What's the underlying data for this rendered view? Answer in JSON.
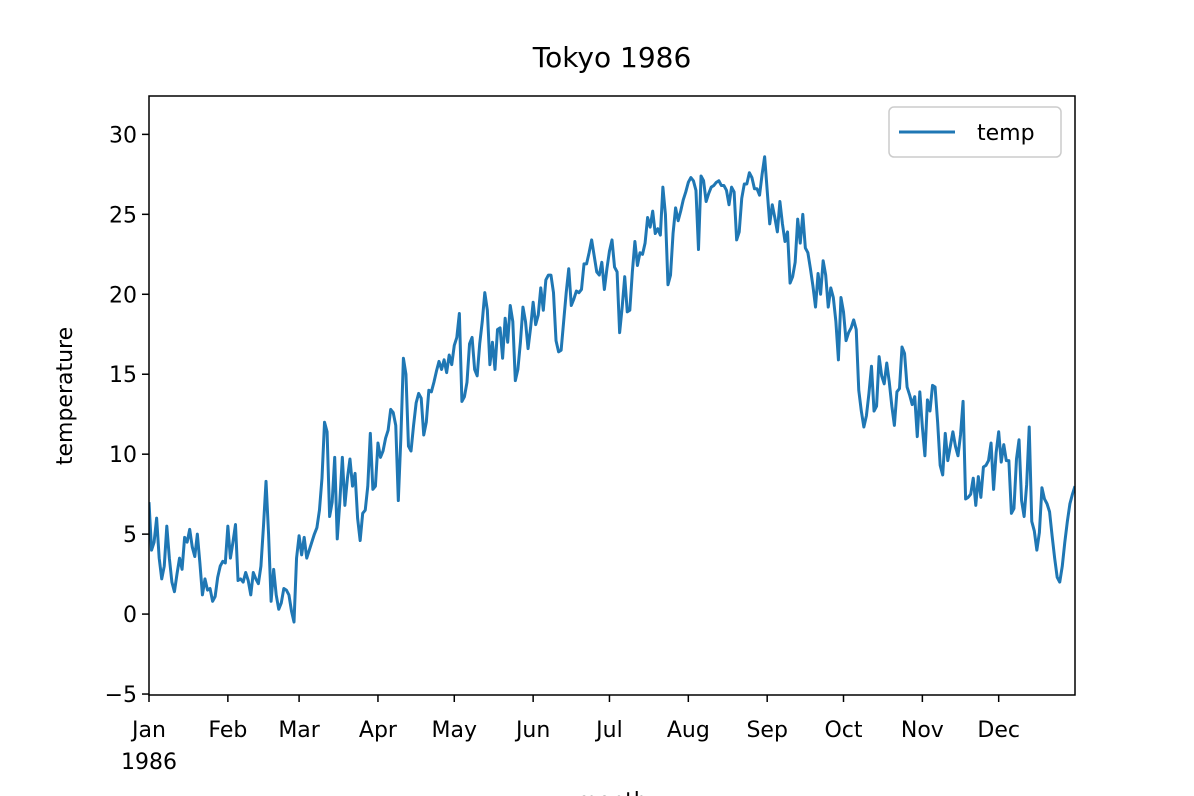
{
  "chart_data": {
    "type": "line",
    "title": "Tokyo 1986",
    "xlabel": "month",
    "ylabel": "temperature",
    "x": [
      0,
      1,
      2,
      3,
      4,
      5,
      6,
      7,
      8,
      9,
      10,
      11,
      12,
      13,
      14,
      15,
      16,
      17,
      18,
      19,
      20,
      21,
      22,
      23,
      24,
      25,
      26,
      27,
      28,
      29,
      30,
      31,
      32,
      33,
      34,
      35,
      36,
      37,
      38,
      39,
      40,
      41,
      42,
      43,
      44,
      45,
      46,
      47,
      48,
      49,
      50,
      51,
      52,
      53,
      54,
      55,
      56,
      57,
      58,
      59,
      60,
      61,
      62,
      63,
      64,
      65,
      66,
      67,
      68,
      69,
      70,
      71,
      72,
      73,
      74,
      75,
      76,
      77,
      78,
      79,
      80,
      81,
      82,
      83,
      84,
      85,
      86,
      87,
      88,
      89,
      90,
      91,
      92,
      93,
      94,
      95,
      96,
      97,
      98,
      99,
      100,
      101,
      102,
      103,
      104,
      105,
      106,
      107,
      108,
      109,
      110,
      111,
      112,
      113,
      114,
      115,
      116,
      117,
      118,
      119,
      120,
      121,
      122,
      123,
      124,
      125,
      126,
      127,
      128,
      129,
      130,
      131,
      132,
      133,
      134,
      135,
      136,
      137,
      138,
      139,
      140,
      141,
      142,
      143,
      144,
      145,
      146,
      147,
      148,
      149,
      150,
      151,
      152,
      153,
      154,
      155,
      156,
      157,
      158,
      159,
      160,
      161,
      162,
      163,
      164,
      165,
      166,
      167,
      168,
      169,
      170,
      171,
      172,
      173,
      174,
      175,
      176,
      177,
      178,
      179,
      180,
      181,
      182,
      183,
      184,
      185,
      186,
      187,
      188,
      189,
      190,
      191,
      192,
      193,
      194,
      195,
      196,
      197,
      198,
      199,
      200,
      201,
      202,
      203,
      204,
      205,
      206,
      207,
      208,
      209,
      210,
      211,
      212,
      213,
      214,
      215,
      216,
      217,
      218,
      219,
      220,
      221,
      222,
      223,
      224,
      225,
      226,
      227,
      228,
      229,
      230,
      231,
      232,
      233,
      234,
      235,
      236,
      237,
      238,
      239,
      240,
      241,
      242,
      243,
      244,
      245,
      246,
      247,
      248,
      249,
      250,
      251,
      252,
      253,
      254,
      255,
      256,
      257,
      258,
      259,
      260,
      261,
      262,
      263,
      264,
      265,
      266,
      267,
      268,
      269,
      270,
      271,
      272,
      273,
      274,
      275,
      276,
      277,
      278,
      279,
      280,
      281,
      282,
      283,
      284,
      285,
      286,
      287,
      288,
      289,
      290,
      291,
      292,
      293,
      294,
      295,
      296,
      297,
      298,
      299,
      300,
      301,
      302,
      303,
      304,
      305,
      306,
      307,
      308,
      309,
      310,
      311,
      312,
      313,
      314,
      315,
      316,
      317,
      318,
      319,
      320,
      321,
      322,
      323,
      324,
      325,
      326,
      327,
      328,
      329,
      330,
      331,
      332,
      333,
      334,
      335,
      336,
      337,
      338,
      339,
      340,
      341,
      342,
      343,
      344,
      345,
      346,
      347,
      348,
      349,
      350,
      351,
      352,
      353,
      354,
      355,
      356,
      357,
      358,
      359,
      360,
      361,
      362,
      363,
      364
    ],
    "series": [
      {
        "name": "temp",
        "color": "#1f77b4",
        "values": [
          7,
          4,
          4.5,
          6,
          3.5,
          2.2,
          3,
          5.5,
          3.5,
          2,
          1.4,
          2.5,
          3.5,
          2.8,
          4.8,
          4.5,
          5.3,
          4.2,
          3.6,
          5,
          3.2,
          1.2,
          2.2,
          1.5,
          1.6,
          0.8,
          1.1,
          2.3,
          3,
          3.3,
          3.2,
          5.5,
          3.5,
          4.5,
          5.6,
          2.1,
          2.2,
          2,
          2.6,
          2.1,
          1.2,
          2.6,
          2.2,
          1.9,
          3,
          5.5,
          8.3,
          5,
          0.8,
          2.8,
          1.2,
          0.3,
          0.7,
          1.6,
          1.5,
          1.2,
          0.2,
          -0.5,
          3.5,
          4.9,
          3.7,
          4.8,
          3.5,
          4,
          4.5,
          5,
          5.4,
          6.5,
          8.5,
          12,
          11.4,
          6.1,
          7,
          9.8,
          4.7,
          7,
          9.8,
          6.8,
          8.5,
          9.7,
          8,
          8.8,
          6,
          4.6,
          6.3,
          6.5,
          8,
          11.3,
          7.8,
          8,
          10.7,
          9.8,
          10.2,
          11,
          11.5,
          12.8,
          12.6,
          11.8,
          7.1,
          11,
          16,
          15,
          10.5,
          10.2,
          11.8,
          13.2,
          13.8,
          13.5,
          11.2,
          12,
          14,
          13.9,
          14.5,
          15.2,
          15.8,
          15.3,
          15.9,
          15.1,
          16.2,
          15.6,
          16.8,
          17.3,
          18.8,
          13.3,
          13.6,
          14.5,
          16.9,
          17.3,
          15.3,
          14.9,
          16.9,
          18.3,
          20.1,
          19,
          15.6,
          17,
          15.3,
          17.8,
          17.9,
          16,
          18.5,
          17,
          19.3,
          18.3,
          14.6,
          15.3,
          17,
          19.2,
          18.3,
          16.6,
          17.9,
          19.5,
          18.1,
          18.7,
          20.4,
          19,
          20.9,
          21.2,
          21.2,
          20.1,
          17.1,
          16.4,
          16.5,
          18.3,
          20.1,
          21.6,
          19.3,
          19.7,
          20.2,
          20.1,
          20.3,
          21.9,
          21.9,
          22.6,
          23.4,
          22.4,
          21.4,
          21.2,
          22,
          20.3,
          21.6,
          22.7,
          23.4,
          21.7,
          21.4,
          17.6,
          19.2,
          21.1,
          18.9,
          19,
          21.4,
          23.3,
          21.8,
          22.6,
          22.5,
          23.2,
          24.8,
          24.2,
          25.2,
          23.8,
          24.1,
          23.7,
          26.7,
          25,
          20.6,
          21.2,
          23.8,
          25.4,
          24.6,
          25.2,
          25.9,
          26.4,
          27,
          27.3,
          27.1,
          26.5,
          22.8,
          27.4,
          27.1,
          25.8,
          26.3,
          26.7,
          26.8,
          27,
          27.1,
          26.8,
          26.8,
          26.5,
          25.6,
          26.7,
          26.4,
          23.4,
          23.9,
          26,
          26.9,
          26.9,
          27.6,
          27.3,
          26.6,
          26.6,
          26.2,
          27.5,
          28.6,
          26.5,
          24.4,
          25.6,
          24.8,
          23.9,
          25.8,
          24.4,
          23.3,
          23.9,
          20.7,
          21.1,
          22,
          24.7,
          23.2,
          25,
          22.9,
          22.6,
          21.6,
          20.5,
          19.2,
          21.3,
          20,
          22.1,
          21.2,
          19.2,
          20.4,
          19.8,
          18.3,
          15.9,
          19.8,
          18.9,
          17.1,
          17.6,
          17.9,
          18.4,
          17.8,
          14,
          12.7,
          11.7,
          12.4,
          13.8,
          15.5,
          12.7,
          13,
          16.1,
          14.9,
          14.4,
          15.7,
          14.5,
          13,
          11.8,
          13.9,
          14.1,
          16.7,
          16.3,
          14.2,
          13.7,
          13.1,
          13.6,
          11.1,
          13.9,
          11.7,
          9.9,
          13.4,
          12.7,
          14.3,
          14.2,
          12,
          9.3,
          8.7,
          11.3,
          9.6,
          10.5,
          11.4,
          10.5,
          9.9,
          11.2,
          13.3,
          7.2,
          7.3,
          7.5,
          8.5,
          6.8,
          8.6,
          7.3,
          9.2,
          9.3,
          9.6,
          10.7,
          7.8,
          10.1,
          11.4,
          9.5,
          10.6,
          9.6,
          9.6,
          6.3,
          6.6,
          9.7,
          10.9,
          7.1,
          6.1,
          8.1,
          11.7,
          5.8,
          5.2,
          4,
          5.1,
          7.9,
          7.2,
          6.9,
          6.4,
          4.9,
          3.5,
          2.3,
          2,
          3,
          4.5,
          5.8,
          6.9,
          7.5,
          8
        ]
      }
    ],
    "xlim": [
      0,
      364
    ],
    "xticks": [
      {
        "value": 0,
        "label": "Jan\n1986"
      },
      {
        "value": 31,
        "label": "Feb"
      },
      {
        "value": 59,
        "label": "Mar"
      },
      {
        "value": 90,
        "label": "Apr"
      },
      {
        "value": 120,
        "label": "May"
      },
      {
        "value": 151,
        "label": "Jun"
      },
      {
        "value": 181,
        "label": "Jul"
      },
      {
        "value": 212,
        "label": "Aug"
      },
      {
        "value": 243,
        "label": "Sep"
      },
      {
        "value": 273,
        "label": "Oct"
      },
      {
        "value": 304,
        "label": "Nov"
      },
      {
        "value": 334,
        "label": "Dec"
      }
    ],
    "ylim": [
      -5.06,
      32.4
    ],
    "yticks": [
      {
        "value": -5,
        "label": "−5"
      },
      0,
      5,
      10,
      15,
      20,
      25,
      30
    ],
    "grid": false,
    "legend": "upper right"
  }
}
